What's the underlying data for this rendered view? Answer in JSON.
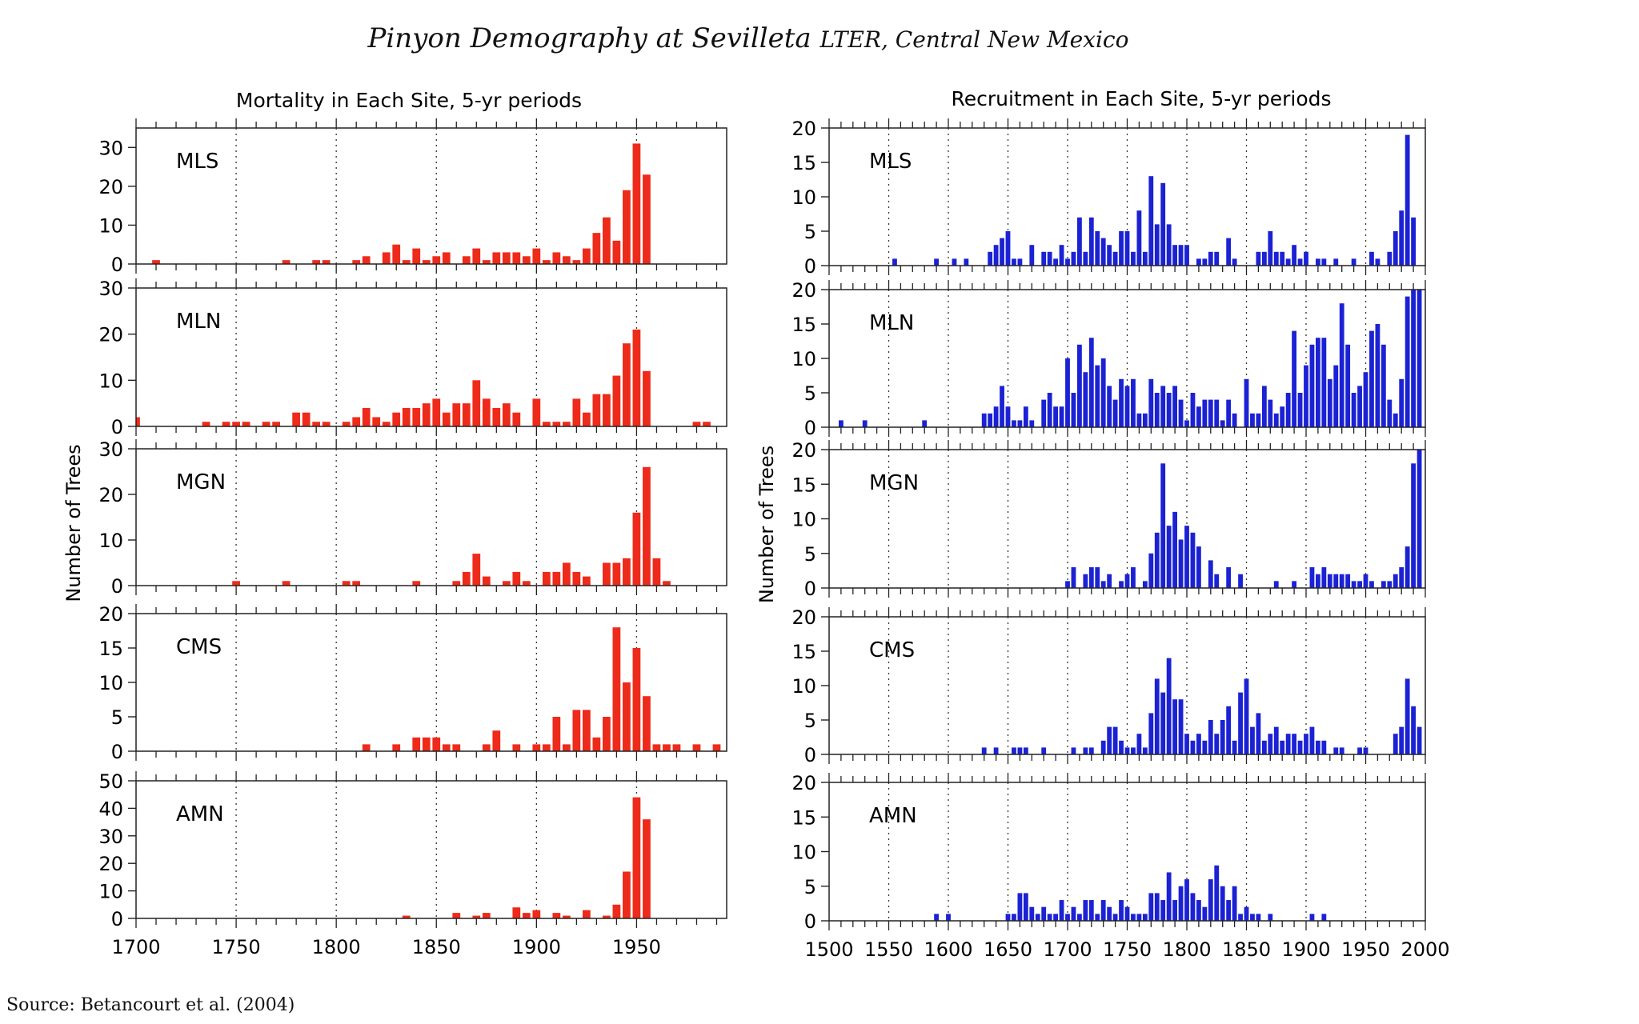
{
  "title": {
    "main": "Pinyon Demography at Sevilleta",
    "sub": "LTER, Central New Mexico"
  },
  "source": "Source: Betancourt et al. (2004)",
  "colors": {
    "mortality": "#ee2a1a",
    "recruitment": "#1b22d4"
  },
  "chart_data": [
    {
      "type": "bar",
      "title": "Mortality in Each Site, 5-yr periods",
      "ylabel": "Number of Trees",
      "xlabel": "",
      "xlim": [
        1700,
        1995
      ],
      "xticks": [
        1700,
        1750,
        1800,
        1850,
        1900,
        1950
      ],
      "bin_width": 5,
      "series": [
        {
          "name": "MLS",
          "ylim": [
            0,
            35
          ],
          "yticks": [
            0,
            10,
            20,
            30
          ],
          "x": [
            1710,
            1775,
            1790,
            1795,
            1810,
            1815,
            1825,
            1830,
            1835,
            1840,
            1845,
            1850,
            1855,
            1865,
            1870,
            1875,
            1880,
            1885,
            1890,
            1895,
            1900,
            1905,
            1910,
            1915,
            1920,
            1925,
            1930,
            1935,
            1940,
            1945,
            1950,
            1955
          ],
          "values": [
            1,
            1,
            1,
            1,
            1,
            2,
            3,
            5,
            1,
            4,
            1,
            2,
            3,
            2,
            4,
            1,
            3,
            3,
            3,
            2,
            4,
            1,
            3,
            2,
            1,
            4,
            8,
            12,
            6,
            19,
            31,
            23
          ]
        },
        {
          "name": "MLN",
          "ylim": [
            0,
            30
          ],
          "yticks": [
            0,
            10,
            20,
            30
          ],
          "x": [
            1700,
            1735,
            1745,
            1750,
            1755,
            1765,
            1770,
            1780,
            1785,
            1790,
            1795,
            1805,
            1810,
            1815,
            1820,
            1825,
            1830,
            1835,
            1840,
            1845,
            1850,
            1855,
            1860,
            1865,
            1870,
            1875,
            1880,
            1885,
            1890,
            1900,
            1905,
            1910,
            1915,
            1920,
            1925,
            1930,
            1935,
            1940,
            1945,
            1950,
            1955,
            1980,
            1985
          ],
          "values": [
            2,
            1,
            1,
            1,
            1,
            1,
            1,
            3,
            3,
            1,
            1,
            1,
            2,
            4,
            2,
            1,
            3,
            4,
            4,
            5,
            6,
            3,
            5,
            5,
            10,
            6,
            4,
            5,
            3,
            6,
            1,
            1,
            1,
            6,
            3,
            7,
            7,
            11,
            18,
            21,
            12,
            1,
            1
          ]
        },
        {
          "name": "MGN",
          "ylim": [
            0,
            30
          ],
          "yticks": [
            0,
            10,
            20,
            30
          ],
          "x": [
            1750,
            1775,
            1805,
            1810,
            1840,
            1860,
            1865,
            1870,
            1875,
            1885,
            1890,
            1895,
            1905,
            1910,
            1915,
            1920,
            1925,
            1935,
            1940,
            1945,
            1950,
            1955,
            1960,
            1965
          ],
          "values": [
            1,
            1,
            1,
            1,
            1,
            1,
            3,
            7,
            2,
            1,
            3,
            1,
            3,
            3,
            5,
            3,
            2,
            5,
            5,
            6,
            16,
            26,
            6,
            1
          ]
        },
        {
          "name": "CMS",
          "ylim": [
            0,
            20
          ],
          "yticks": [
            0,
            5,
            10,
            15,
            20
          ],
          "x": [
            1815,
            1830,
            1840,
            1845,
            1850,
            1855,
            1860,
            1875,
            1880,
            1890,
            1900,
            1905,
            1910,
            1915,
            1920,
            1925,
            1930,
            1935,
            1940,
            1945,
            1950,
            1955,
            1960,
            1965,
            1970,
            1980,
            1990
          ],
          "values": [
            1,
            1,
            2,
            2,
            2,
            1,
            1,
            1,
            3,
            1,
            1,
            1,
            5,
            1,
            6,
            6,
            2,
            5,
            18,
            10,
            15,
            8,
            1,
            1,
            1,
            1,
            1
          ]
        },
        {
          "name": "AMN",
          "ylim": [
            0,
            50
          ],
          "yticks": [
            0,
            10,
            20,
            30,
            40,
            50
          ],
          "x": [
            1835,
            1860,
            1870,
            1875,
            1890,
            1895,
            1900,
            1910,
            1915,
            1925,
            1935,
            1940,
            1945,
            1950,
            1955
          ],
          "values": [
            1,
            2,
            1,
            2,
            4,
            2,
            3,
            2,
            1,
            3,
            1,
            5,
            17,
            44,
            36
          ]
        }
      ]
    },
    {
      "type": "bar",
      "title": "Recruitment in Each Site, 5-yr periods",
      "ylabel": "Number of Trees",
      "xlabel": "",
      "xlim": [
        1500,
        2000
      ],
      "xticks": [
        1500,
        1550,
        1600,
        1650,
        1700,
        1750,
        1800,
        1850,
        1900,
        1950,
        2000
      ],
      "bin_width": 5,
      "series": [
        {
          "name": "MLS",
          "ylim": [
            0,
            20
          ],
          "yticks": [
            0,
            5,
            10,
            15,
            20
          ],
          "x": [
            1555,
            1590,
            1605,
            1615,
            1635,
            1640,
            1645,
            1650,
            1655,
            1660,
            1670,
            1680,
            1685,
            1690,
            1695,
            1700,
            1705,
            1710,
            1715,
            1720,
            1725,
            1730,
            1735,
            1740,
            1745,
            1750,
            1755,
            1760,
            1765,
            1770,
            1775,
            1780,
            1785,
            1790,
            1795,
            1800,
            1810,
            1815,
            1820,
            1825,
            1835,
            1840,
            1860,
            1865,
            1870,
            1875,
            1880,
            1885,
            1890,
            1895,
            1900,
            1910,
            1915,
            1925,
            1940,
            1955,
            1960,
            1970,
            1975,
            1980,
            1985,
            1990
          ],
          "values": [
            1,
            1,
            1,
            1,
            2,
            3,
            4,
            5,
            1,
            1,
            3,
            2,
            2,
            1,
            3,
            1,
            2,
            7,
            2,
            7,
            5,
            4,
            3,
            2,
            5,
            5,
            2,
            8,
            2,
            13,
            6,
            12,
            6,
            3,
            3,
            3,
            1,
            1,
            2,
            2,
            4,
            1,
            2,
            2,
            5,
            2,
            2,
            1,
            3,
            1,
            2,
            1,
            1,
            1,
            1,
            2,
            1,
            2,
            5,
            8,
            19,
            7
          ]
        },
        {
          "name": "MLN",
          "ylim": [
            0,
            20
          ],
          "yticks": [
            0,
            5,
            10,
            15,
            20
          ],
          "x": [
            1510,
            1530,
            1580,
            1630,
            1635,
            1640,
            1645,
            1650,
            1655,
            1660,
            1665,
            1670,
            1680,
            1685,
            1690,
            1695,
            1700,
            1705,
            1710,
            1715,
            1720,
            1725,
            1730,
            1735,
            1740,
            1745,
            1750,
            1755,
            1760,
            1765,
            1770,
            1775,
            1780,
            1785,
            1790,
            1795,
            1800,
            1805,
            1810,
            1815,
            1820,
            1825,
            1830,
            1835,
            1840,
            1850,
            1855,
            1860,
            1865,
            1870,
            1875,
            1880,
            1885,
            1890,
            1895,
            1900,
            1905,
            1910,
            1915,
            1920,
            1925,
            1930,
            1935,
            1940,
            1945,
            1950,
            1955,
            1960,
            1965,
            1970,
            1975,
            1980,
            1985,
            1990,
            1995
          ],
          "values": [
            1,
            1,
            1,
            2,
            2,
            3,
            6,
            3,
            1,
            1,
            3,
            1,
            4,
            5,
            3,
            3,
            10,
            5,
            12,
            8,
            13,
            9,
            10,
            6,
            4,
            7,
            6,
            7,
            2,
            2,
            7,
            5,
            6,
            5,
            6,
            4,
            1,
            5,
            3,
            4,
            4,
            4,
            1,
            4,
            2,
            7,
            2,
            2,
            6,
            4,
            2,
            3,
            5,
            14,
            5,
            9,
            12,
            13,
            13,
            7,
            9,
            18,
            12,
            5,
            6,
            8,
            14,
            15,
            12,
            4,
            2,
            7,
            19,
            20,
            20
          ]
        },
        {
          "name": "MGN",
          "ylim": [
            0,
            20
          ],
          "yticks": [
            0,
            5,
            10,
            15,
            20
          ],
          "x": [
            1700,
            1705,
            1715,
            1720,
            1725,
            1730,
            1735,
            1745,
            1750,
            1755,
            1765,
            1770,
            1775,
            1780,
            1785,
            1790,
            1795,
            1800,
            1805,
            1810,
            1820,
            1825,
            1835,
            1845,
            1875,
            1890,
            1905,
            1910,
            1915,
            1920,
            1925,
            1930,
            1935,
            1940,
            1945,
            1950,
            1955,
            1965,
            1970,
            1975,
            1980,
            1985,
            1990,
            1995
          ],
          "values": [
            1,
            3,
            2,
            3,
            3,
            1,
            2,
            1,
            2,
            3,
            1,
            5,
            8,
            18,
            9,
            11,
            7,
            9,
            8,
            6,
            4,
            2,
            3,
            2,
            1,
            1,
            3,
            2,
            3,
            2,
            2,
            2,
            2,
            1,
            1,
            2,
            1,
            1,
            1,
            2,
            3,
            6,
            18,
            20
          ]
        },
        {
          "name": "CMS",
          "ylim": [
            0,
            20
          ],
          "yticks": [
            0,
            5,
            10,
            15,
            20
          ],
          "x": [
            1630,
            1640,
            1655,
            1660,
            1665,
            1680,
            1705,
            1715,
            1720,
            1730,
            1735,
            1740,
            1745,
            1750,
            1755,
            1760,
            1765,
            1770,
            1775,
            1780,
            1785,
            1790,
            1795,
            1800,
            1805,
            1810,
            1815,
            1820,
            1825,
            1830,
            1835,
            1840,
            1845,
            1850,
            1855,
            1860,
            1865,
            1870,
            1875,
            1880,
            1885,
            1890,
            1895,
            1900,
            1905,
            1910,
            1915,
            1925,
            1930,
            1945,
            1950,
            1975,
            1980,
            1985,
            1990,
            1995
          ],
          "values": [
            1,
            1,
            1,
            1,
            1,
            1,
            1,
            1,
            1,
            2,
            4,
            4,
            2,
            1,
            1,
            3,
            1,
            6,
            11,
            9,
            14,
            8,
            8,
            3,
            2,
            3,
            2,
            5,
            3,
            5,
            7,
            2,
            9,
            11,
            4,
            6,
            2,
            3,
            4,
            2,
            3,
            3,
            2,
            3,
            4,
            2,
            2,
            1,
            1,
            1,
            1,
            3,
            4,
            11,
            7,
            4
          ]
        },
        {
          "name": "AMN",
          "ylim": [
            0,
            20
          ],
          "yticks": [
            0,
            5,
            10,
            15,
            20
          ],
          "x": [
            1590,
            1600,
            1650,
            1655,
            1660,
            1665,
            1670,
            1675,
            1680,
            1685,
            1690,
            1695,
            1700,
            1705,
            1710,
            1715,
            1720,
            1725,
            1730,
            1735,
            1740,
            1745,
            1750,
            1755,
            1760,
            1765,
            1770,
            1775,
            1780,
            1785,
            1790,
            1795,
            1800,
            1805,
            1810,
            1815,
            1820,
            1825,
            1830,
            1835,
            1840,
            1845,
            1850,
            1855,
            1860,
            1870,
            1905,
            1915
          ],
          "values": [
            1,
            1,
            1,
            1,
            4,
            4,
            2,
            1,
            2,
            1,
            1,
            3,
            1,
            2,
            1,
            3,
            3,
            1,
            3,
            2,
            1,
            3,
            2,
            1,
            1,
            1,
            4,
            4,
            3,
            7,
            3,
            5,
            6,
            4,
            3,
            2,
            6,
            8,
            5,
            3,
            5,
            1,
            2,
            1,
            1,
            1,
            1,
            1
          ]
        }
      ]
    }
  ]
}
